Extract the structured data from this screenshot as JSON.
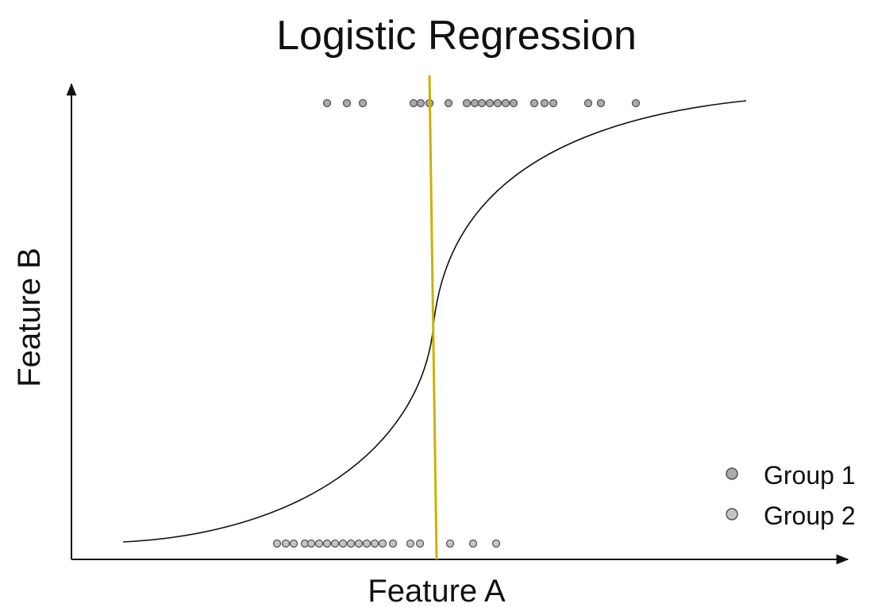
{
  "title": "Logistic Regression",
  "x_axis": {
    "label": "Feature A"
  },
  "y_axis": {
    "label": "Feature B"
  },
  "legend": [
    {
      "label": "Group 1"
    },
    {
      "label": "Group 2"
    }
  ]
}
